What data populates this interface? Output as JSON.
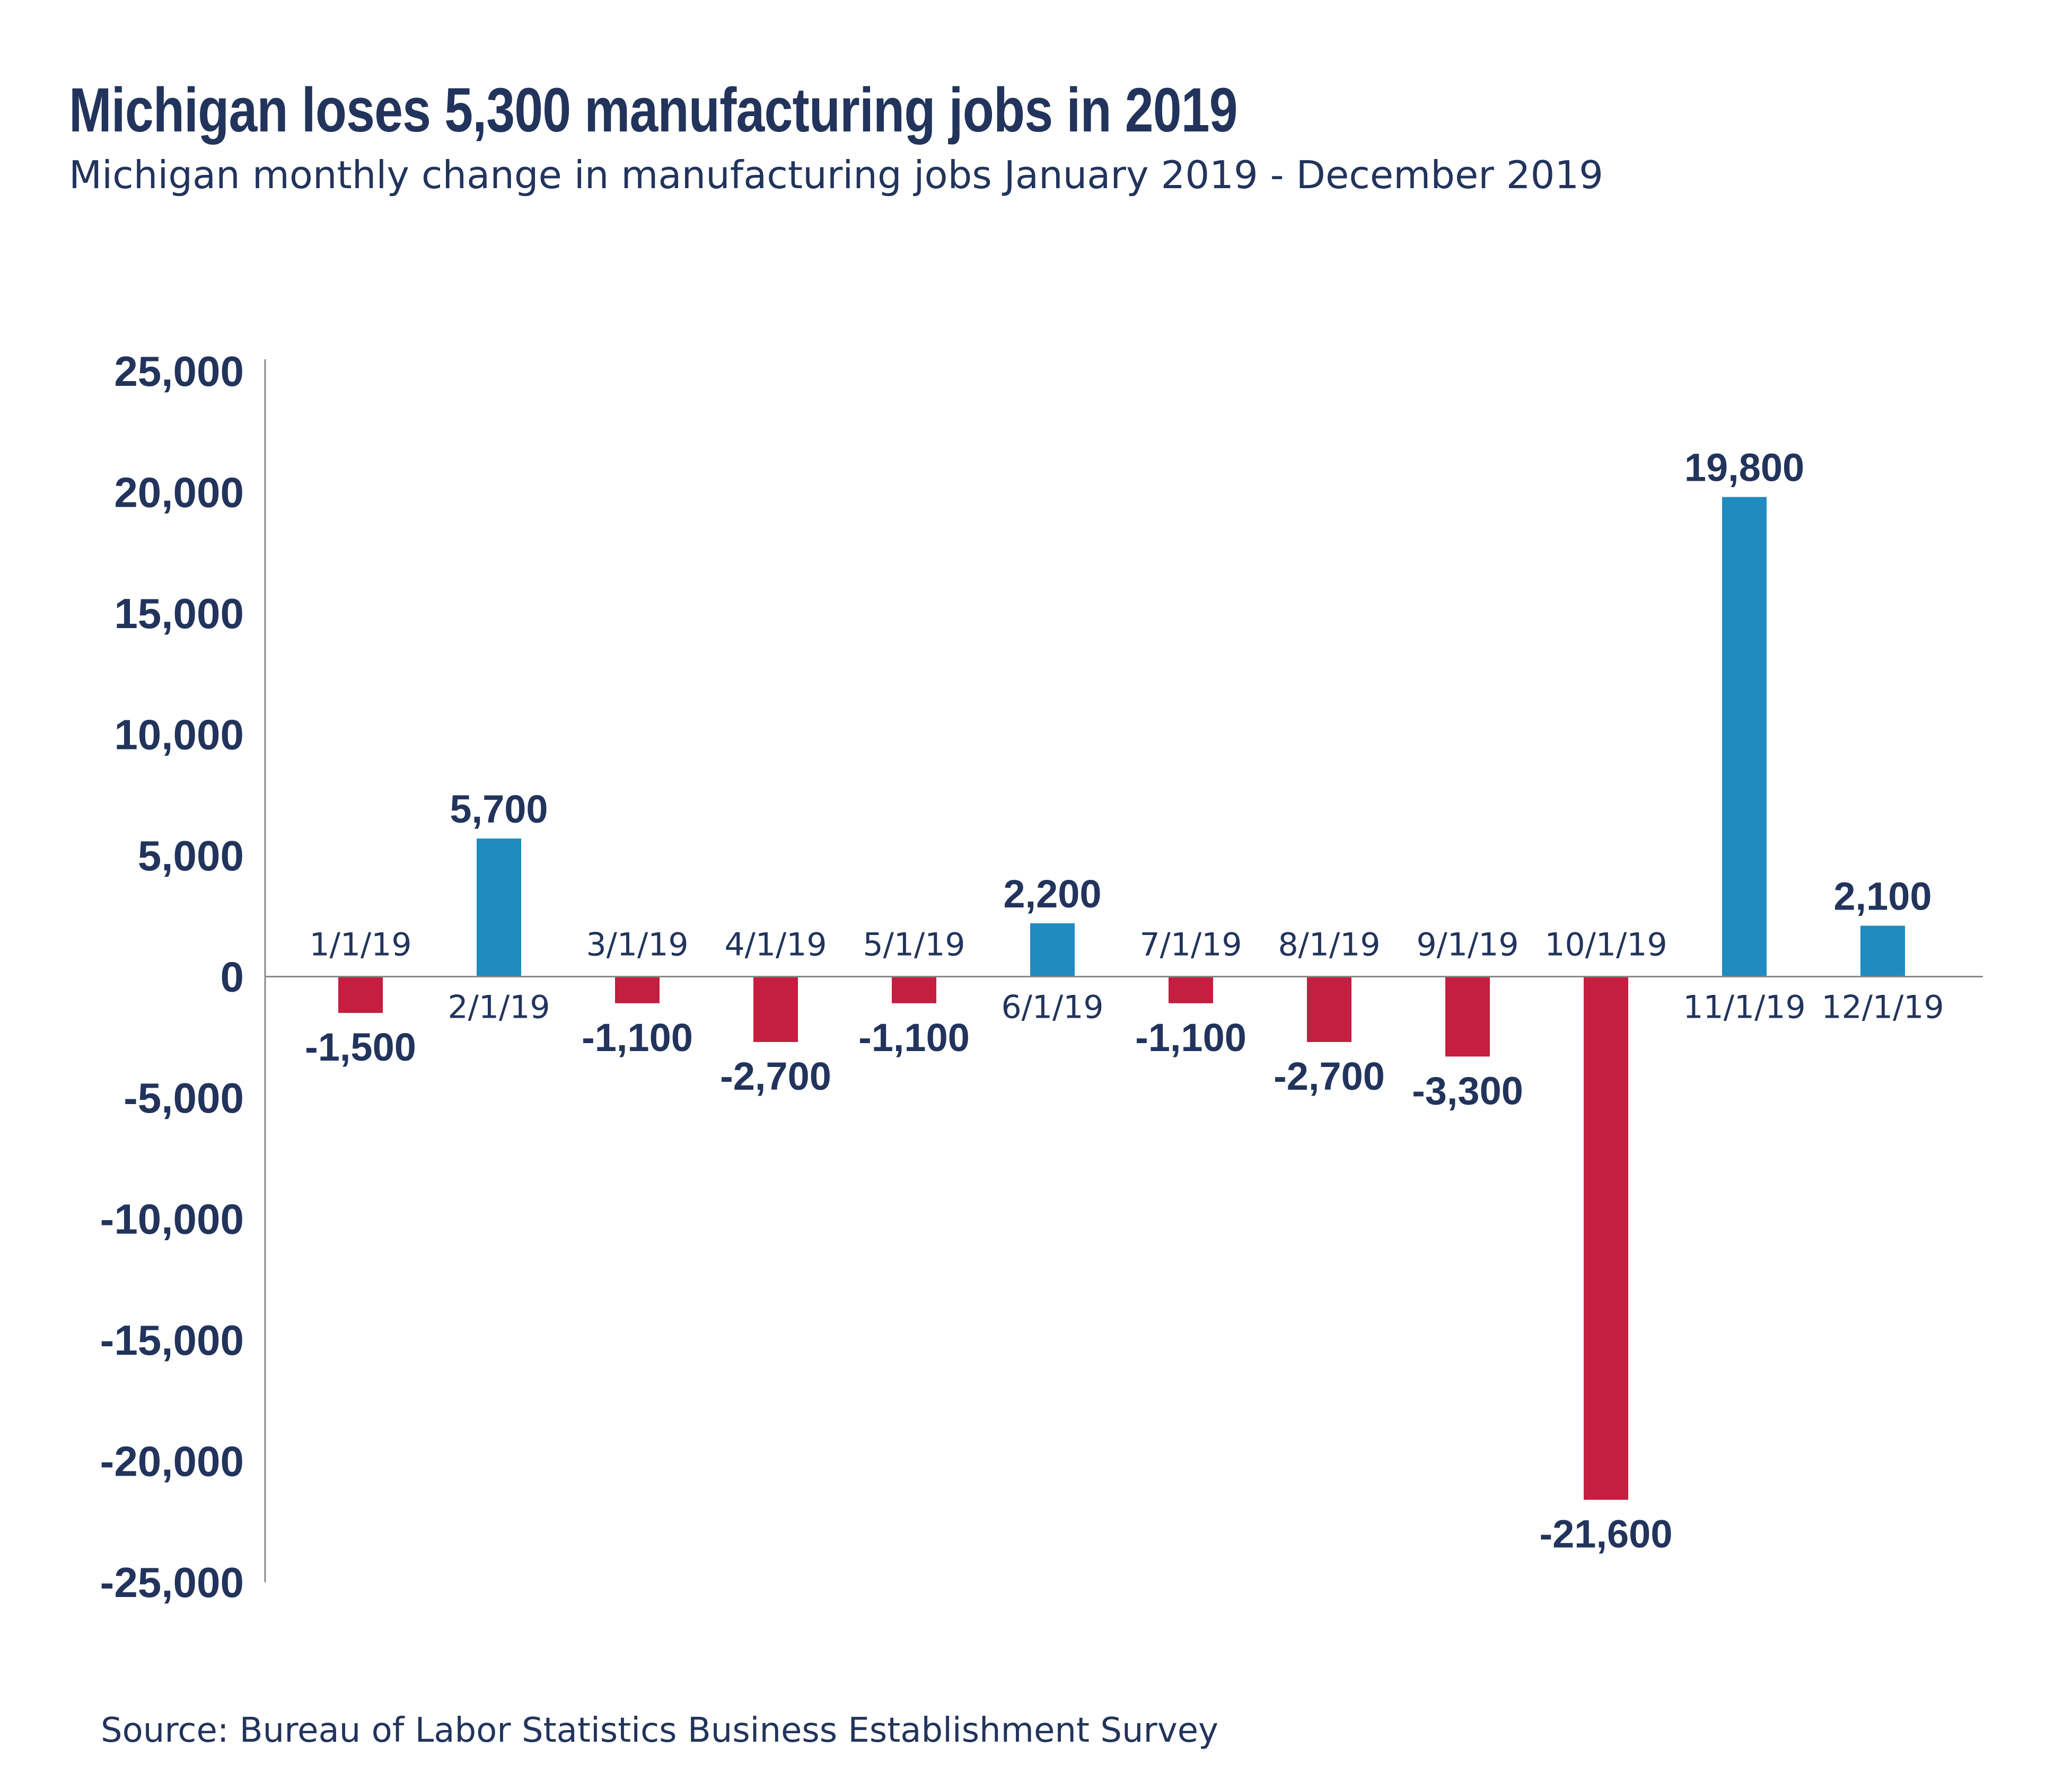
{
  "header": {
    "title": "Michigan loses 5,300 manufacturing jobs in 2019",
    "subtitle": "Michigan monthly change in manufacturing jobs January 2019 - December 2019"
  },
  "footer": {
    "source": "Source: Bureau of Labor Statistics Business Establishment Survey"
  },
  "colors": {
    "positive": "#1f8bbf",
    "negative": "#c41e40",
    "text": "#22345c",
    "axis": "#888888"
  },
  "chart_data": {
    "type": "bar",
    "title": "Michigan loses 5,300 manufacturing jobs in 2019",
    "subtitle": "Michigan monthly change in manufacturing jobs January 2019 - December 2019",
    "xlabel": "",
    "ylabel": "",
    "ylim": [
      -25000,
      25000
    ],
    "yticks": [
      25000,
      20000,
      15000,
      10000,
      5000,
      0,
      -5000,
      -10000,
      -15000,
      -20000,
      -25000
    ],
    "ytick_labels": [
      "25,000",
      "20,000",
      "15,000",
      "10,000",
      "5,000",
      "0",
      "-5,000",
      "-10,000",
      "-15,000",
      "-20,000",
      "-25,000"
    ],
    "grid": false,
    "legend": "none",
    "categories": [
      "1/1/19",
      "2/1/19",
      "3/1/19",
      "4/1/19",
      "5/1/19",
      "6/1/19",
      "7/1/19",
      "8/1/19",
      "9/1/19",
      "10/1/19",
      "11/1/19",
      "12/1/19"
    ],
    "values": [
      -1500,
      5700,
      -1100,
      -2700,
      -1100,
      2200,
      -1100,
      -2700,
      -3300,
      -21600,
      19800,
      2100
    ],
    "value_labels": [
      "-1,500",
      "5,700",
      "-1,100",
      "-2,700",
      "-1,100",
      "2,200",
      "-1,100",
      "-2,700",
      "-3,300",
      "-21,600",
      "19,800",
      "2,100"
    ]
  }
}
